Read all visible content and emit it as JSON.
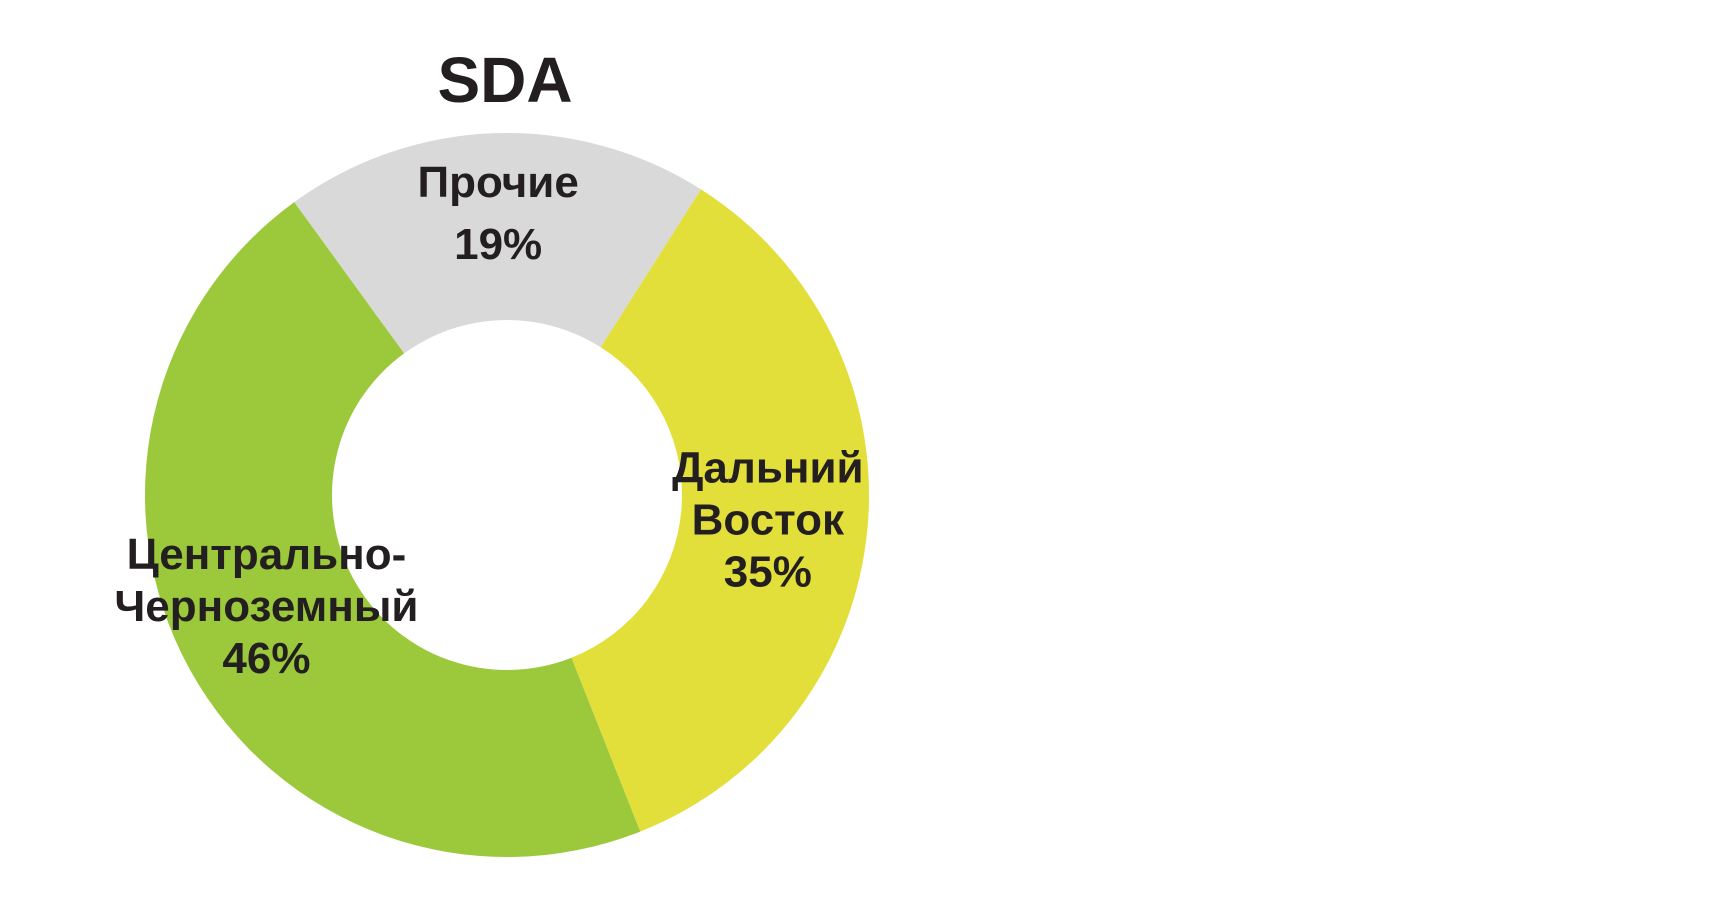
{
  "chart_data": {
    "type": "pie",
    "variant": "donut",
    "title": "SDA",
    "slices": [
      {
        "label_lines": [
          "Прочие"
        ],
        "value": 19,
        "value_label": "19%",
        "color": "#d9d9d9"
      },
      {
        "label_lines": [
          "Дальний",
          "Восток"
        ],
        "value": 35,
        "value_label": "35%",
        "color": "#e3df3a"
      },
      {
        "label_lines": [
          "Центрально-",
          "Черноземный"
        ],
        "value": 46,
        "value_label": "46%",
        "color": "#9bc93b"
      }
    ],
    "start_angle_deg": -36,
    "direction": "clockwise",
    "legend": "none"
  }
}
